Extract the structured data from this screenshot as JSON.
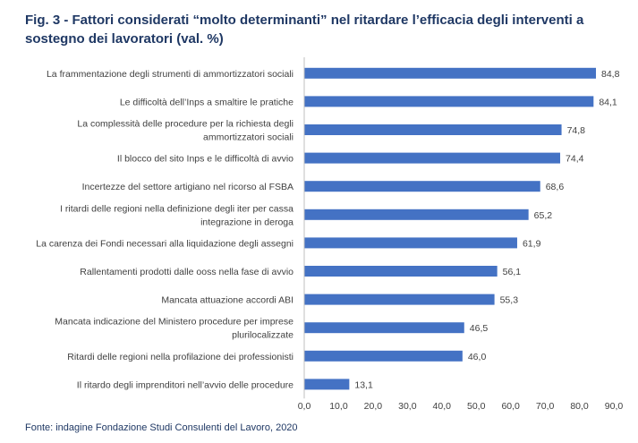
{
  "title": "Fig. 3 - Fattori considerati “molto determinanti” nel ritardare l’efficacia degli interventi a sostegno dei lavoratori (val. %)",
  "source": "Fonte: indagine Fondazione Studi Consulenti del Lavoro, 2020",
  "colors": {
    "bar": "#4472c4",
    "title": "#1f3864"
  },
  "chart_data": {
    "type": "bar",
    "orientation": "horizontal",
    "categories": [
      [
        "La frammentazione degli strumenti di ammortizzatori sociali"
      ],
      [
        "Le difficoltà dell’Inps a smaltire le pratiche"
      ],
      [
        "La complessità delle procedure per la richiesta degli",
        "ammortizzatori sociali"
      ],
      [
        "Il blocco del sito Inps e le difficoltà di avvio"
      ],
      [
        "Incertezze del settore artigiano nel ricorso al FSBA"
      ],
      [
        "I ritardi delle regioni nella definizione degli iter per cassa",
        "integrazione in deroga"
      ],
      [
        "La carenza dei Fondi necessari alla liquidazione degli assegni"
      ],
      [
        "Rallentamenti prodotti dalle ooss nella fase di avvio"
      ],
      [
        "Mancata attuazione accordi ABI"
      ],
      [
        "Mancata indicazione del Ministero procedure per imprese",
        "plurilocalizzate"
      ],
      [
        "Ritardi delle regioni nella profilazione dei professionisti"
      ],
      [
        "Il ritardo degli imprenditori nell’avvio delle procedure"
      ]
    ],
    "values": [
      84.8,
      84.1,
      74.8,
      74.4,
      68.6,
      65.2,
      61.9,
      56.1,
      55.3,
      46.5,
      46.0,
      13.1
    ],
    "value_labels": [
      "84,8",
      "84,1",
      "74,8",
      "74,4",
      "68,6",
      "65,2",
      "61,9",
      "56,1",
      "55,3",
      "46,5",
      "46,0",
      "13,1"
    ],
    "xlim": [
      0,
      90
    ],
    "xticks": [
      "0,0",
      "10,0",
      "20,0",
      "30,0",
      "40,0",
      "50,0",
      "60,0",
      "70,0",
      "80,0",
      "90,0"
    ],
    "grid": false,
    "legend": "none"
  }
}
